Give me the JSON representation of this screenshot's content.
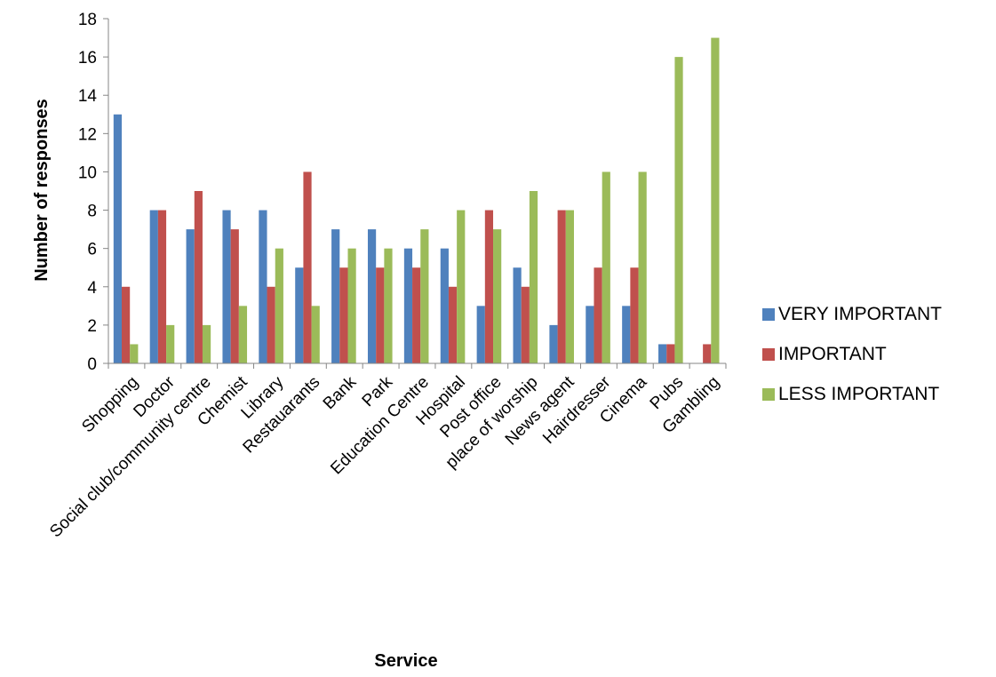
{
  "chart_data": {
    "type": "bar",
    "xlabel": "Service",
    "ylabel": "Number of responses",
    "ylim": [
      0,
      18
    ],
    "ytick_step": 2,
    "grid": false,
    "legend_position": "right",
    "categories": [
      "Shopping",
      "Doctor",
      "Social club/community centre",
      "Chemist",
      "Library",
      "Restauarants",
      "Bank",
      "Park",
      "Education Centre",
      "Hospital",
      "Post office",
      "place of worship",
      "News agent",
      "Hairdresser",
      "Cinema",
      "Pubs",
      "Gambling"
    ],
    "series": [
      {
        "name": "VERY IMPORTANT",
        "color": "#4F81BD",
        "values": [
          13,
          8,
          7,
          8,
          8,
          5,
          7,
          7,
          6,
          6,
          3,
          5,
          2,
          3,
          3,
          1,
          0
        ]
      },
      {
        "name": "IMPORTANT",
        "color": "#C0504D",
        "values": [
          4,
          8,
          9,
          7,
          4,
          10,
          5,
          5,
          5,
          4,
          8,
          4,
          8,
          5,
          5,
          1,
          1
        ]
      },
      {
        "name": "LESS IMPORTANT",
        "color": "#9BBB59",
        "values": [
          1,
          2,
          2,
          3,
          6,
          3,
          6,
          6,
          7,
          8,
          7,
          9,
          8,
          10,
          10,
          16,
          17
        ]
      }
    ]
  }
}
